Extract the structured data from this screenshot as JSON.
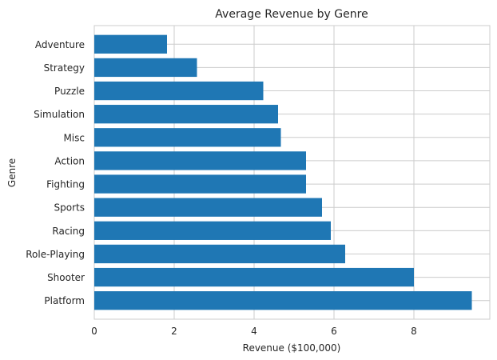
{
  "chart_data": {
    "type": "bar",
    "orientation": "horizontal",
    "title": "Average Revenue by Genre",
    "xlabel": "Revenue ($100,000)",
    "ylabel": "Genre",
    "categories": [
      "Platform",
      "Shooter",
      "Role-Playing",
      "Racing",
      "Sports",
      "Fighting",
      "Action",
      "Misc",
      "Simulation",
      "Puzzle",
      "Strategy",
      "Adventure"
    ],
    "values": [
      9.45,
      8.0,
      6.28,
      5.92,
      5.7,
      5.3,
      5.3,
      4.67,
      4.6,
      4.23,
      2.57,
      1.82
    ],
    "xlim": [
      0,
      9.9
    ],
    "xticks": [
      0,
      2,
      4,
      6,
      8
    ],
    "grid": true,
    "bar_color": "#1f77b4",
    "grid_color": "#cccccc"
  }
}
